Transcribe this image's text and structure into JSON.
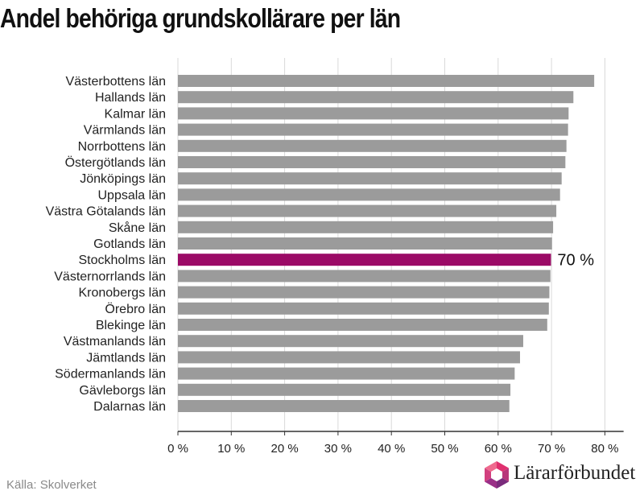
{
  "chart_data": {
    "type": "bar",
    "orientation": "horizontal",
    "title": "Andel behöriga grundskollärare per län",
    "xlabel": "",
    "ylabel": "",
    "xlim": [
      0,
      82
    ],
    "x_ticks": [
      0,
      10,
      20,
      30,
      40,
      50,
      60,
      70,
      80
    ],
    "x_tick_labels": [
      "0 %",
      "10 %",
      "20 %",
      "30 %",
      "40 %",
      "50 %",
      "60 %",
      "70 %",
      "80 %"
    ],
    "grid": "vertical",
    "categories": [
      "Västerbottens län",
      "Hallands län",
      "Kalmar län",
      "Värmlands län",
      "Norrbottens län",
      "Östergötlands län",
      "Jönköpings län",
      "Uppsala län",
      "Västra Götalands län",
      "Skåne län",
      "Gotlands län",
      "Stockholms län",
      "Västernorrlands län",
      "Kronobergs län",
      "Örebro län",
      "Blekinge län",
      "Västmanlands län",
      "Jämtlands län",
      "Södermanlands län",
      "Gävleborgs län",
      "Dalarnas län"
    ],
    "values": [
      78,
      74.1,
      73.2,
      73.1,
      72.8,
      72.6,
      71.9,
      71.6,
      70.9,
      70.3,
      70.1,
      69.9,
      69.8,
      69.6,
      69.5,
      69.2,
      64.7,
      64.1,
      63.1,
      62.3,
      62.1
    ],
    "highlight": {
      "category": "Stockholms län",
      "label": "70 %"
    },
    "colors": {
      "bar": "#9b9b9b",
      "highlight": "#9b0a66",
      "grid": "#d9d9d9",
      "axis": "#333333"
    }
  },
  "source": "Källa: Skolverket",
  "brand": {
    "name": "Lärarförbundet",
    "logo_icon": "lararforbundet-logo-icon"
  }
}
